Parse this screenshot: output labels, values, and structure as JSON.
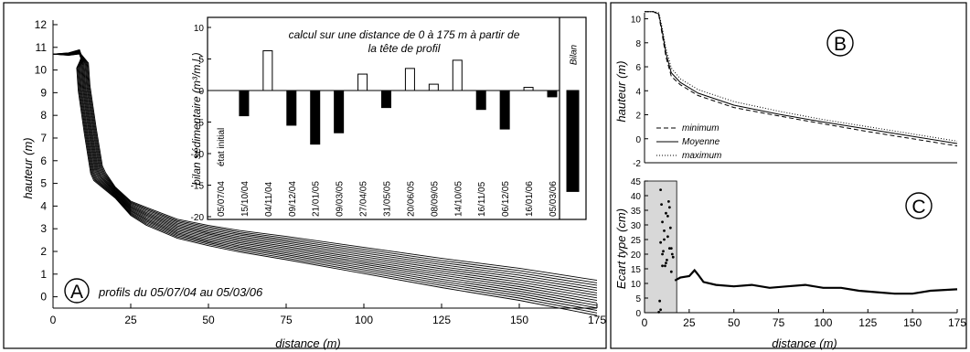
{
  "panel_A": {
    "letter": "A",
    "caption": "profils du 05/07/04 au 05/03/06",
    "xlabel": "distance (m)",
    "ylabel": "hauteur (m)"
  },
  "inset": {
    "note_line1": "calcul sur une distance de 0 à 175 m à partir de",
    "note_line2": "la tête de profil",
    "ylabel": "bilan sédimentaire (m³/m.l.)",
    "bilan_label": "Bilan",
    "initial_label": "état initial"
  },
  "panel_B": {
    "letter": "B",
    "xlabel": "",
    "ylabel": "hauteur (m)",
    "legend": [
      "minimum",
      "Moyenne",
      "maximum"
    ]
  },
  "panel_C": {
    "letter": "C",
    "xlabel": "distance (m)",
    "ylabel": "Ecart type (cm)"
  },
  "chart_data": [
    {
      "id": "A",
      "type": "line",
      "xlabel": "distance (m)",
      "ylabel": "hauteur (m)",
      "xlim": [
        0,
        175
      ],
      "ylim": [
        -0.5,
        12.2
      ],
      "xticks": [
        0,
        25,
        50,
        75,
        100,
        125,
        150,
        175
      ],
      "yticks": [
        0,
        1,
        2,
        3,
        4,
        5,
        6,
        7,
        8,
        9,
        10,
        11,
        12
      ],
      "profile_x": [
        0,
        5,
        8.5,
        9,
        9.5,
        10,
        12,
        14,
        15,
        20,
        25,
        30,
        40,
        50,
        60,
        75,
        100,
        125,
        150,
        175
      ],
      "profile_y": [
        10.7,
        10.7,
        10.8,
        10.6,
        10.2,
        9.2,
        7.3,
        5.6,
        5.3,
        4.6,
        3.9,
        3.55,
        3.0,
        2.7,
        2.45,
        2.15,
        1.6,
        1.05,
        0.55,
        -0.05
      ],
      "n_profiles": 15,
      "grid": false
    },
    {
      "id": "inset",
      "type": "bar",
      "ylabel": "bilan sédimentaire (m³/m.l.)",
      "ylim": [
        -20,
        10
      ],
      "yticks": [
        10,
        5,
        0,
        -5,
        -10,
        -15,
        -20
      ],
      "categories": [
        "05/07/04",
        "15/10/04",
        "04/11/04",
        "09/12/04",
        "21/01/05",
        "09/03/05",
        "27/04/05",
        "31/05/05",
        "20/06/05",
        "08/09/05",
        "14/10/05",
        "16/11/05",
        "06/12/05",
        "16/01/06",
        "05/03/06",
        "Bilan"
      ],
      "values": [
        0,
        -4,
        6.3,
        -5.5,
        -8.5,
        -6.7,
        2.6,
        -2.7,
        3.5,
        1.0,
        4.8,
        -3.0,
        -6.1,
        0.5,
        -1.0,
        -16
      ],
      "positive_color": "#ffffff",
      "negative_color": "#000000"
    },
    {
      "id": "B",
      "type": "line",
      "ylabel": "hauteur (m)",
      "xlim": [
        0,
        175
      ],
      "ylim": [
        -2,
        10.5
      ],
      "yticks": [
        -2,
        0,
        2,
        4,
        6,
        8,
        10
      ],
      "series": [
        {
          "name": "minimum",
          "x": [
            0,
            5,
            8,
            10,
            12,
            15,
            20,
            30,
            50,
            75,
            100,
            125,
            150,
            175
          ],
          "y": [
            10.6,
            10.6,
            10.3,
            8.6,
            6.8,
            5.2,
            4.5,
            3.6,
            2.6,
            1.9,
            1.25,
            0.6,
            0.0,
            -0.6
          ]
        },
        {
          "name": "Moyenne",
          "x": [
            0,
            5,
            8,
            10,
            12,
            15,
            20,
            30,
            50,
            75,
            100,
            125,
            150,
            175
          ],
          "y": [
            10.6,
            10.6,
            10.4,
            8.9,
            7.1,
            5.5,
            4.7,
            3.8,
            2.8,
            2.05,
            1.4,
            0.8,
            0.2,
            -0.4
          ]
        },
        {
          "name": "maximum",
          "x": [
            0,
            5,
            8,
            10,
            12,
            15,
            20,
            30,
            50,
            75,
            100,
            125,
            150,
            175
          ],
          "y": [
            10.6,
            10.6,
            10.5,
            9.2,
            7.5,
            5.9,
            5.0,
            4.1,
            3.1,
            2.3,
            1.6,
            1.0,
            0.4,
            -0.2
          ]
        }
      ]
    },
    {
      "id": "C",
      "type": "line",
      "xlabel": "distance (m)",
      "ylabel": "Ecart type (cm)",
      "xlim": [
        0,
        175
      ],
      "ylim": [
        0,
        45
      ],
      "xticks": [
        0,
        25,
        50,
        75,
        100,
        125,
        150,
        175
      ],
      "yticks": [
        0,
        5,
        10,
        15,
        20,
        25,
        30,
        35,
        40,
        45
      ],
      "shaded_range": [
        0,
        18
      ],
      "scatter_x": [
        8,
        8.5,
        9,
        9,
        9.5,
        10,
        10,
        10.5,
        11,
        11.5,
        12,
        12.5,
        13,
        13.5,
        14,
        14.5,
        15,
        15.5,
        16,
        9,
        10,
        11,
        12,
        13,
        14,
        15
      ],
      "scatter_y": [
        0.2,
        4,
        42,
        24,
        37,
        20,
        31,
        21,
        25,
        16,
        34,
        18,
        26,
        38,
        36,
        29,
        22,
        20,
        19,
        1,
        16,
        28,
        17,
        33,
        22,
        14
      ],
      "x": [
        17,
        20,
        25,
        28,
        30,
        33,
        40,
        50,
        60,
        70,
        80,
        90,
        100,
        110,
        120,
        130,
        140,
        150,
        160,
        175
      ],
      "y": [
        11,
        12,
        12.5,
        14.5,
        13,
        10.5,
        9.5,
        9,
        9.5,
        8.5,
        9,
        9.5,
        8.5,
        8.5,
        7.5,
        7,
        6.5,
        6.5,
        7.5,
        8
      ]
    }
  ]
}
